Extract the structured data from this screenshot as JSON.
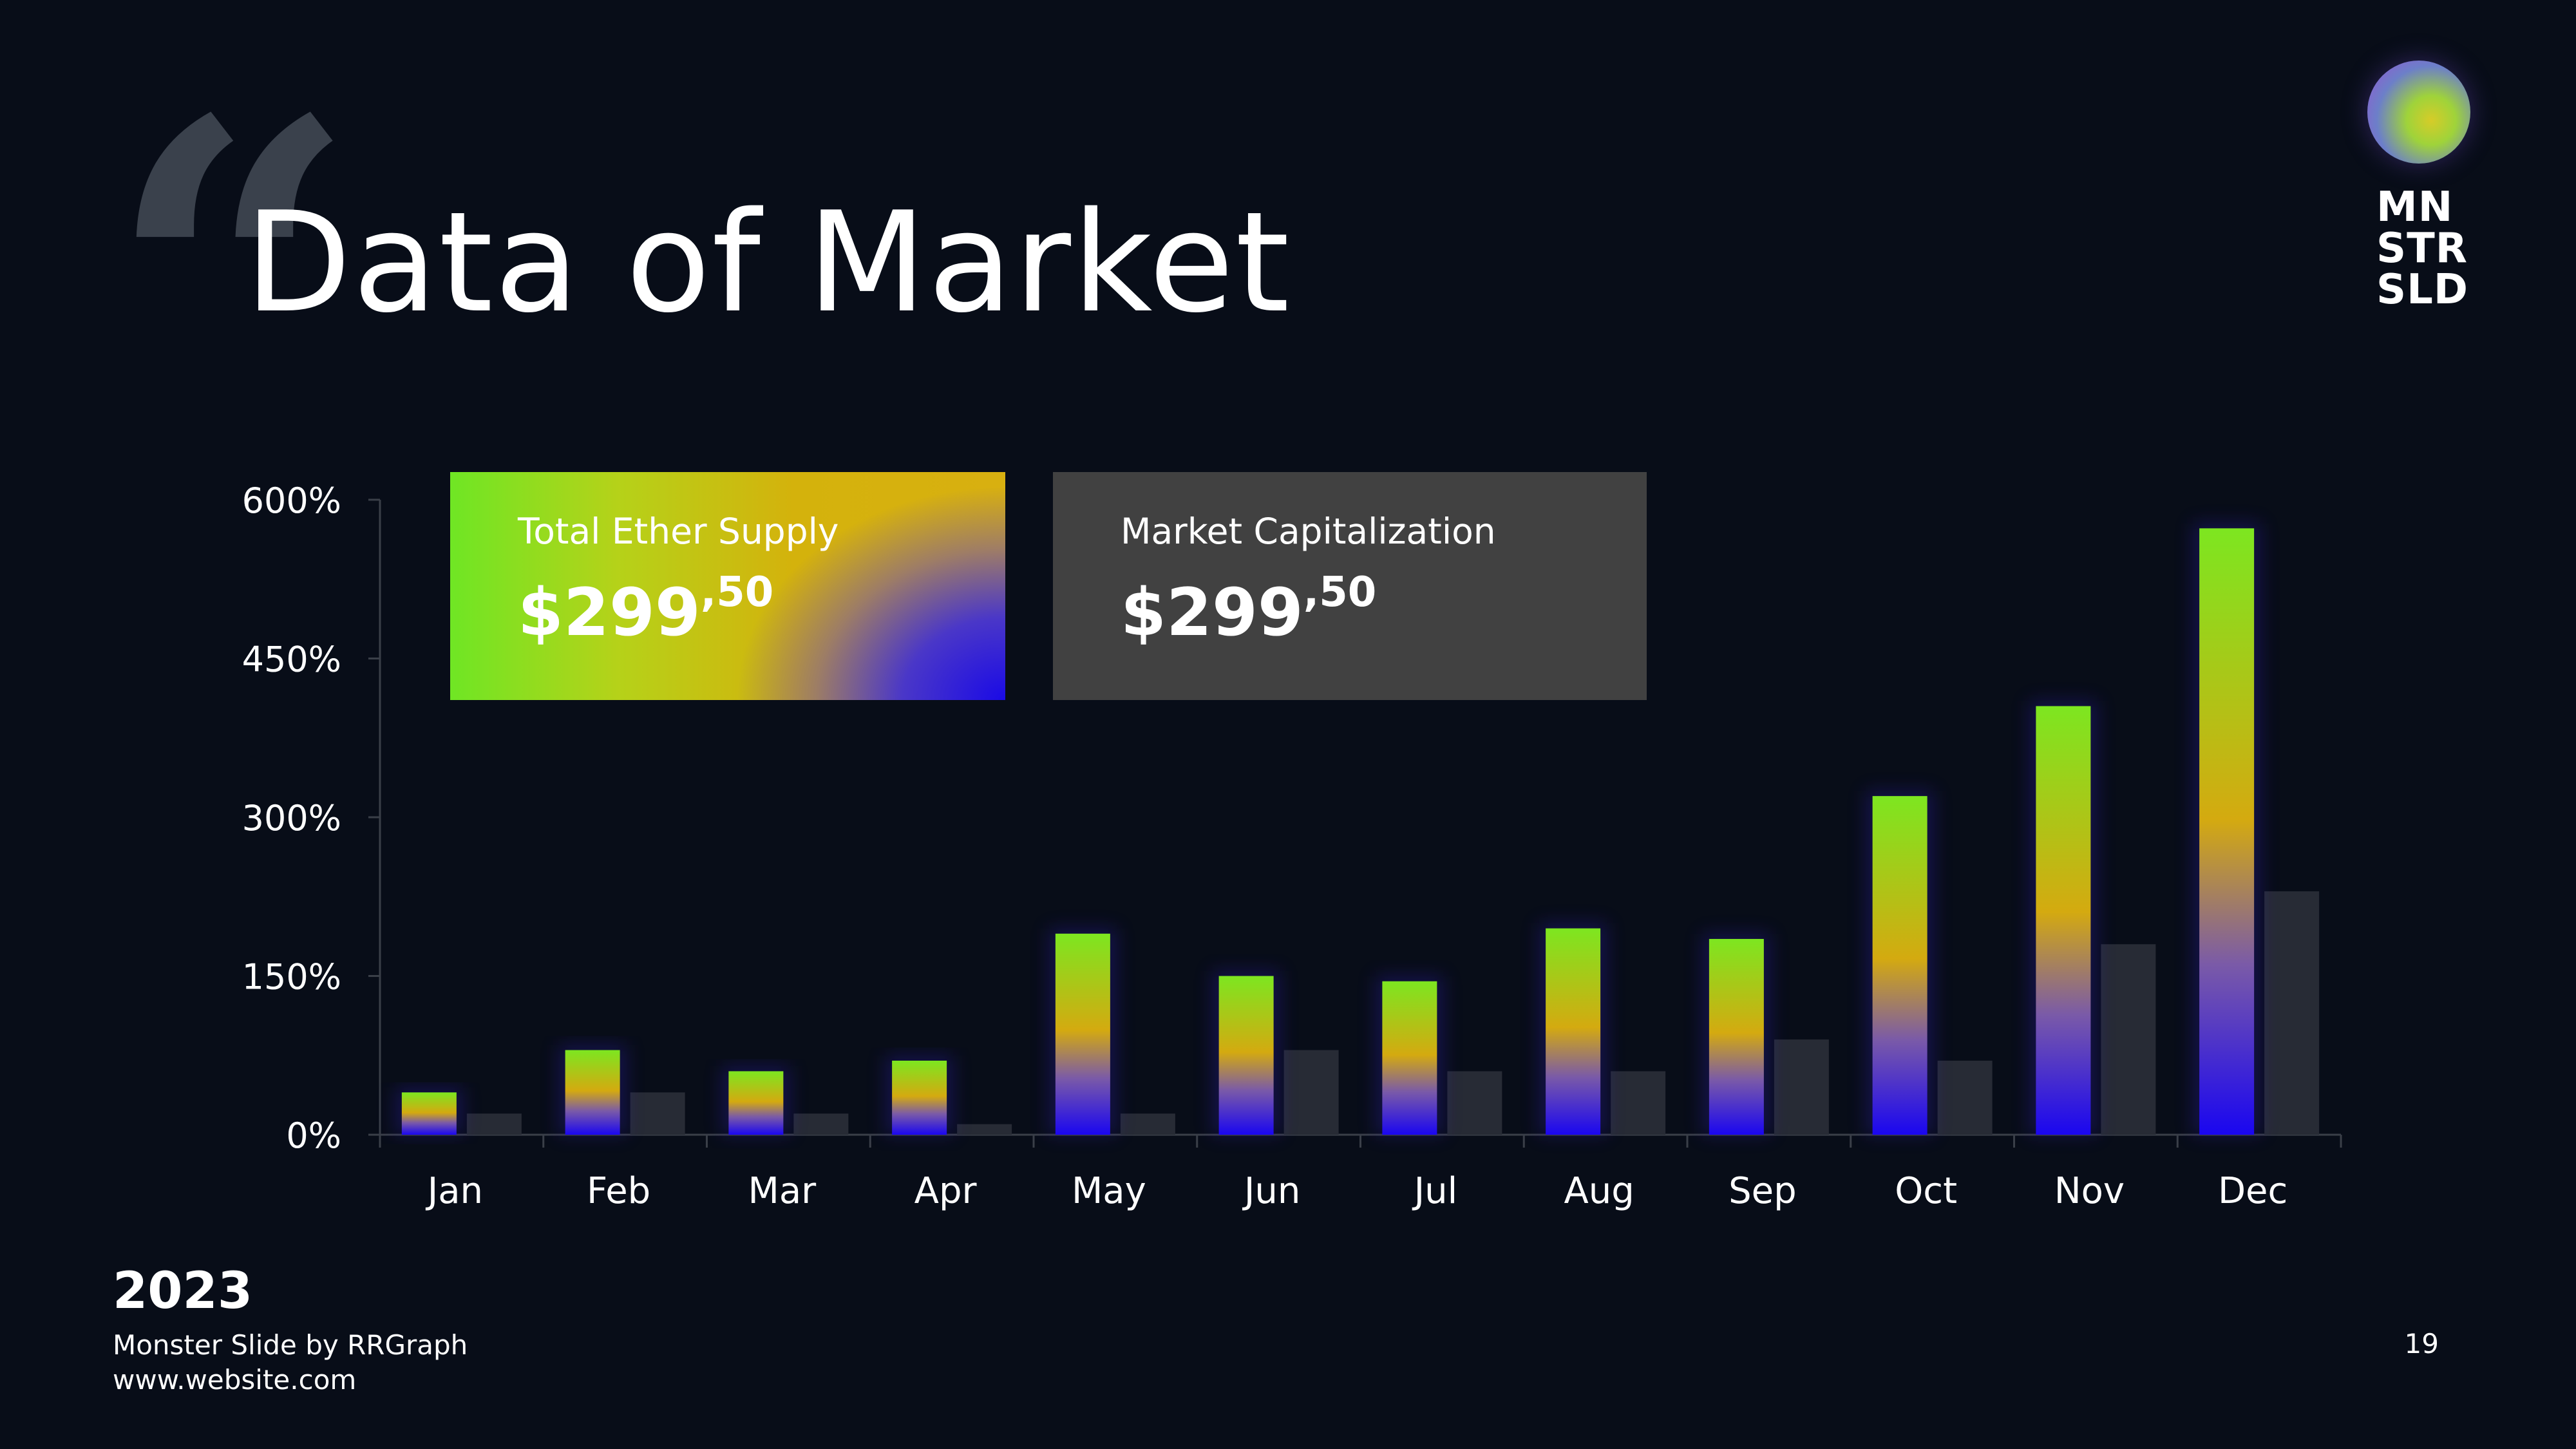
{
  "slide": {
    "quote_mark": "“",
    "title": "Data of Market",
    "logo": {
      "lines": [
        "MN",
        "STR",
        "SLD"
      ]
    },
    "year": "2023",
    "credit": "Monster Slide by RRGraph",
    "website": "www.website.com",
    "page_number": "19"
  },
  "cards": [
    {
      "label": "Total Ether Supply",
      "value": "$299",
      "decimal": ",50"
    },
    {
      "label": "Market Capitalization",
      "value": "$299",
      "decimal": ",50"
    }
  ],
  "chart_data": {
    "type": "bar",
    "categories": [
      "Jan",
      "Feb",
      "Mar",
      "Apr",
      "May",
      "Jun",
      "Jul",
      "Aug",
      "Sep",
      "Oct",
      "Nov",
      "Dec"
    ],
    "series": [
      {
        "values": [
          40,
          80,
          60,
          70,
          190,
          150,
          145,
          195,
          185,
          320,
          405,
          573
        ]
      },
      {
        "values": [
          20,
          40,
          20,
          10,
          20,
          80,
          60,
          60,
          90,
          70,
          180,
          230
        ]
      }
    ],
    "yticks": [
      "0%",
      "150%",
      "300%",
      "450%",
      "600%"
    ],
    "ylim": [
      0,
      600
    ],
    "colors": {
      "gradient_top": "#7de620",
      "gradient_mid": "#d4aa10",
      "gradient_bottom": "#1a06f0",
      "secondary": "#272b35",
      "axis": "#3a3f48"
    }
  }
}
